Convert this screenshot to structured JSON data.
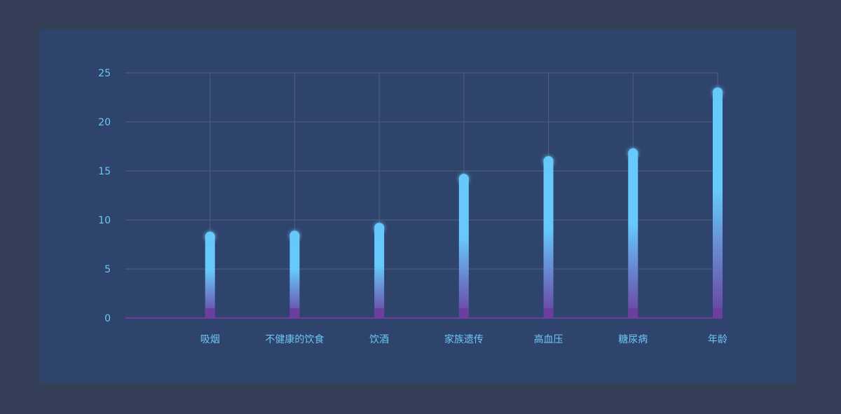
{
  "chart_data": {
    "type": "bar",
    "categories": [
      "吸烟",
      "不健康的饮食",
      "饮酒",
      "家族遗传",
      "高血压",
      "糖尿病",
      "年龄"
    ],
    "values": [
      8.8,
      8.9,
      9.7,
      14.7,
      16.5,
      17.3,
      23.5
    ],
    "ylim": [
      0,
      25
    ],
    "yticks": [
      0,
      5,
      10,
      15,
      20,
      25
    ],
    "grid": true,
    "colors": {
      "bar_top": "#66c8fb",
      "bar_bottom": "#6b3fa0",
      "grid": "#4a5b7c",
      "label": "#6cc8f4",
      "axis_line_top": "#5fc6f5",
      "axis_line_bottom": "#6b3fa0"
    }
  }
}
